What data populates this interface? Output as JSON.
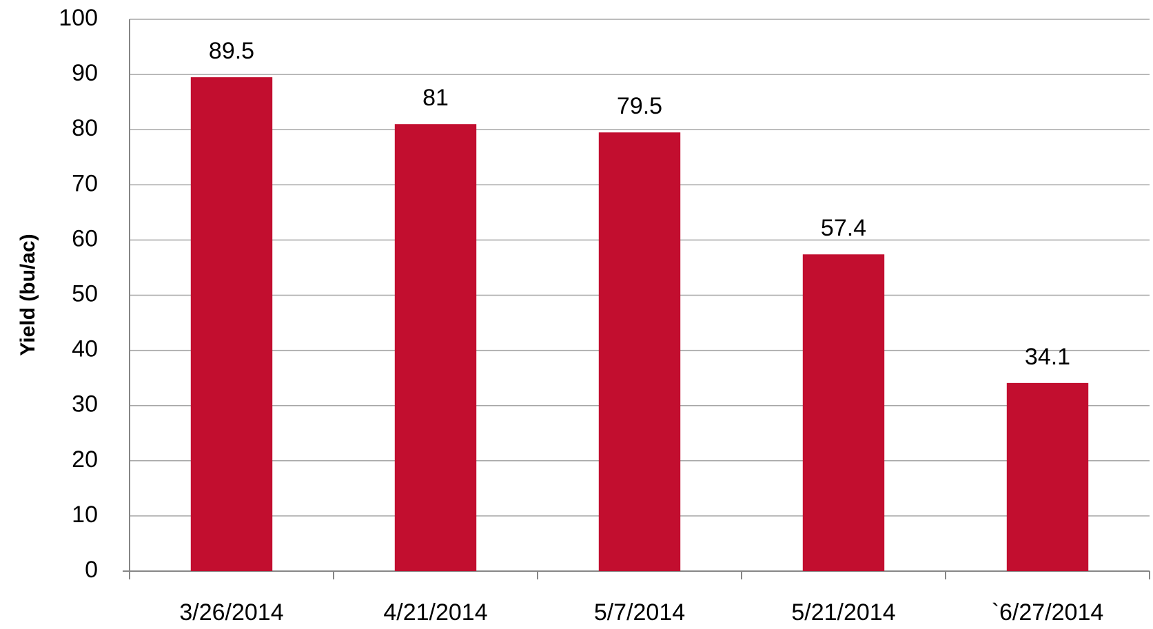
{
  "chart_data": {
    "type": "bar",
    "y_label": "Yield (bu/ac)",
    "categories": [
      "3/26/2014",
      "4/21/2014",
      "5/7/2014",
      "5/21/2014",
      "`6/27/2014"
    ],
    "values": [
      89.5,
      81,
      79.5,
      57.4,
      34.1
    ],
    "color": "#c20e2f",
    "ylim": [
      0,
      100
    ],
    "yticks": [
      0,
      10,
      20,
      30,
      40,
      50,
      60,
      70,
      80,
      90,
      100
    ],
    "grid": true
  }
}
